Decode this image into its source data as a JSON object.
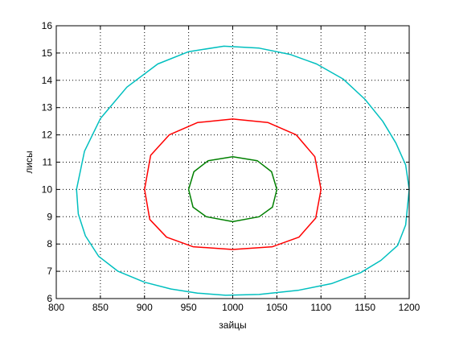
{
  "chart_data": {
    "type": "line",
    "title": "",
    "xlabel": "зайцы",
    "ylabel": "лисы",
    "xlim": [
      800,
      1200
    ],
    "ylim": [
      6,
      16
    ],
    "x_ticks": [
      800,
      850,
      900,
      950,
      1000,
      1050,
      1100,
      1150,
      1200
    ],
    "y_ticks": [
      6,
      7,
      8,
      9,
      10,
      11,
      12,
      13,
      14,
      15,
      16
    ],
    "grid": true,
    "grid_style": "dotted",
    "legend": "none",
    "series": [
      {
        "color": "#00bfbf",
        "closed": true,
        "x": [
          1200,
          1196,
          1187,
          1168,
          1145,
          1112,
          1074,
          1030,
          992,
          960,
          930,
          900,
          870,
          848,
          833,
          825,
          823,
          832,
          850,
          880,
          915,
          950,
          990,
          1030,
          1065,
          1095,
          1125,
          1150,
          1170,
          1185,
          1196,
          1200
        ],
        "y": [
          10,
          8.7,
          7.95,
          7.4,
          6.95,
          6.55,
          6.3,
          6.15,
          6.12,
          6.2,
          6.35,
          6.6,
          7.0,
          7.55,
          8.3,
          9.1,
          10,
          11.4,
          12.6,
          13.75,
          14.6,
          15.05,
          15.25,
          15.18,
          14.95,
          14.6,
          14.05,
          13.3,
          12.5,
          11.7,
          10.9,
          10
        ]
      },
      {
        "color": "#ff0000",
        "closed": true,
        "x": [
          1100,
          1094,
          1075,
          1045,
          1000,
          955,
          925,
          906,
          900,
          907,
          928,
          960,
          1000,
          1040,
          1072,
          1093,
          1100
        ],
        "y": [
          10,
          8.95,
          8.25,
          7.9,
          7.8,
          7.9,
          8.25,
          8.9,
          10,
          11.25,
          12.0,
          12.45,
          12.58,
          12.45,
          12.0,
          11.2,
          10
        ]
      },
      {
        "color": "#008000",
        "closed": true,
        "x": [
          1050,
          1045,
          1030,
          1000,
          970,
          955,
          950,
          956,
          972,
          1000,
          1028,
          1044,
          1050
        ],
        "y": [
          10,
          9.35,
          9.0,
          8.82,
          9.0,
          9.35,
          10,
          10.65,
          11.05,
          11.2,
          11.05,
          10.65,
          10
        ]
      }
    ]
  }
}
